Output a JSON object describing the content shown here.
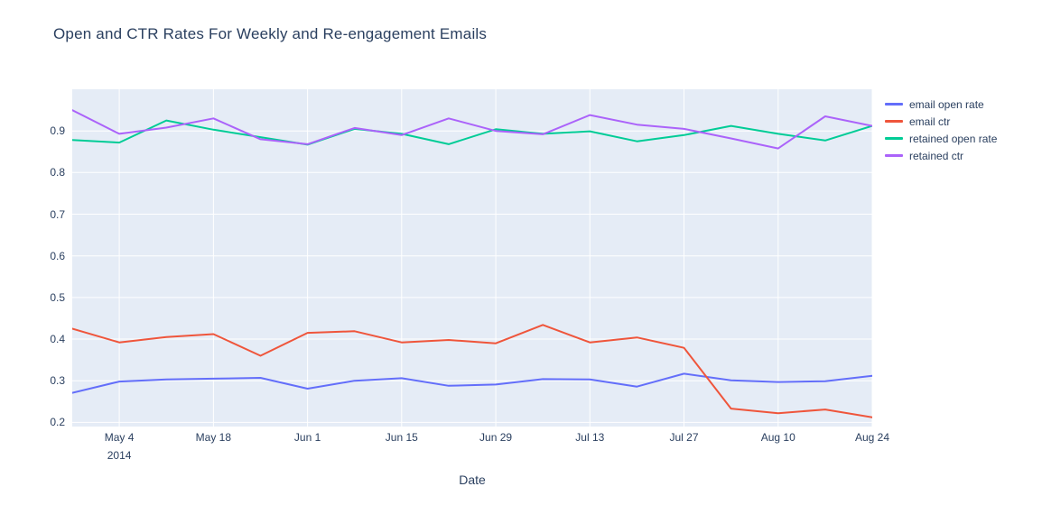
{
  "page": {
    "background": "#ffffff"
  },
  "chart_data": {
    "type": "line",
    "title": "Open and CTR Rates For Weekly and Re-engagement Emails",
    "xlabel": "Date",
    "ylabel": "",
    "plot_bg": "#e5ecf6",
    "grid_color": "#ffffff",
    "font_color": "#2a3f5f",
    "grid": true,
    "legend_position": "right",
    "ylim": [
      0.19,
      1.0
    ],
    "x": [
      "2014-04-27",
      "2014-05-04",
      "2014-05-11",
      "2014-05-18",
      "2014-05-25",
      "2014-06-01",
      "2014-06-08",
      "2014-06-15",
      "2014-06-22",
      "2014-06-29",
      "2014-07-06",
      "2014-07-13",
      "2014-07-20",
      "2014-07-27",
      "2014-08-03",
      "2014-08-10",
      "2014-08-17",
      "2014-08-24"
    ],
    "x_ticks": [
      {
        "index": 1,
        "label": "May 4",
        "sublabel": "2014"
      },
      {
        "index": 3,
        "label": "May 18"
      },
      {
        "index": 5,
        "label": "Jun 1"
      },
      {
        "index": 7,
        "label": "Jun 15"
      },
      {
        "index": 9,
        "label": "Jun 29"
      },
      {
        "index": 11,
        "label": "Jul 13"
      },
      {
        "index": 13,
        "label": "Jul 27"
      },
      {
        "index": 15,
        "label": "Aug 10"
      },
      {
        "index": 17,
        "label": "Aug 24"
      }
    ],
    "y_ticks": [
      0.2,
      0.3,
      0.4,
      0.5,
      0.6,
      0.7,
      0.8,
      0.9
    ],
    "series": [
      {
        "name": "email open rate",
        "color": "#636efa",
        "values": [
          0.271,
          0.298,
          0.303,
          0.305,
          0.307,
          0.281,
          0.3,
          0.306,
          0.288,
          0.291,
          0.304,
          0.303,
          0.286,
          0.317,
          0.301,
          0.297,
          0.299,
          0.312
        ]
      },
      {
        "name": "email ctr",
        "color": "#EF553B",
        "values": [
          0.425,
          0.392,
          0.405,
          0.412,
          0.36,
          0.415,
          0.419,
          0.392,
          0.398,
          0.39,
          0.434,
          0.392,
          0.404,
          0.379,
          0.233,
          0.222,
          0.231,
          0.212
        ]
      },
      {
        "name": "retained open rate",
        "color": "#00cc96",
        "values": [
          0.878,
          0.872,
          0.925,
          0.903,
          0.885,
          0.867,
          0.905,
          0.893,
          0.868,
          0.904,
          0.893,
          0.899,
          0.875,
          0.89,
          0.912,
          0.893,
          0.877,
          0.912
        ]
      },
      {
        "name": "retained ctr",
        "color": "#ab63fa",
        "values": [
          0.95,
          0.893,
          0.908,
          0.93,
          0.88,
          0.868,
          0.907,
          0.89,
          0.93,
          0.9,
          0.892,
          0.938,
          0.915,
          0.905,
          0.882,
          0.858,
          0.935,
          0.912
        ]
      }
    ]
  }
}
